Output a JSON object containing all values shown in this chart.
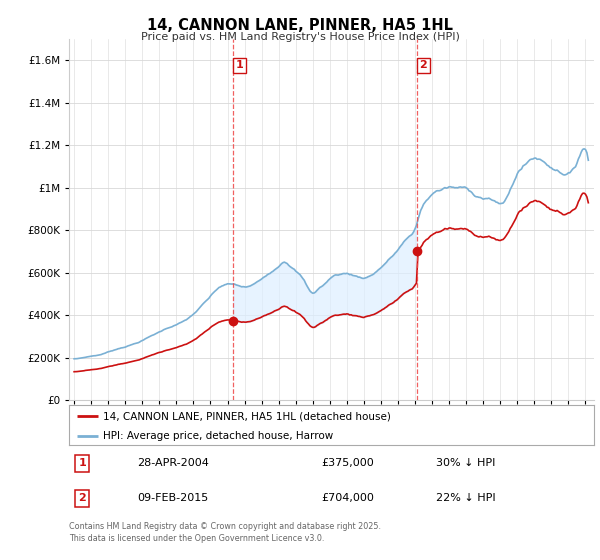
{
  "title": "14, CANNON LANE, PINNER, HA5 1HL",
  "subtitle": "Price paid vs. HM Land Registry's House Price Index (HPI)",
  "legend_line1": "14, CANNON LANE, PINNER, HA5 1HL (detached house)",
  "legend_line2": "HPI: Average price, detached house, Harrow",
  "sale1_date": "28-APR-2004",
  "sale1_price": "£375,000",
  "sale1_note": "30% ↓ HPI",
  "sale2_date": "09-FEB-2015",
  "sale2_price": "£704,000",
  "sale2_note": "22% ↓ HPI",
  "footer": "Contains HM Land Registry data © Crown copyright and database right 2025.\nThis data is licensed under the Open Government Licence v3.0.",
  "red_line_color": "#cc1111",
  "blue_line_color": "#7ab0d4",
  "blue_fill_color": "#ddeeff",
  "vline_color": "#ee4444",
  "marker_color": "#cc1111",
  "ylim_min": 0,
  "ylim_max": 1700000,
  "xmin": 1994.7,
  "xmax": 2025.5,
  "sale1_year": 2004.32,
  "sale2_year": 2015.11,
  "sale1_price_val": 375000,
  "sale2_price_val": 704000
}
